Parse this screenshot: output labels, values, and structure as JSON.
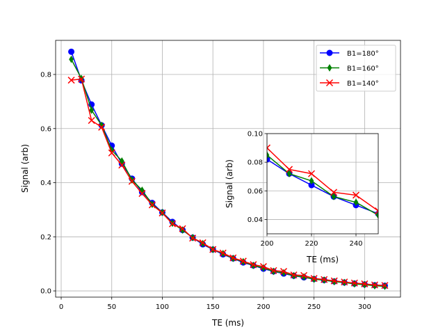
{
  "chart_data": [
    {
      "type": "line",
      "xlabel": "TE (ms)",
      "ylabel": "Signal (arb)",
      "xlim": [
        -5.5,
        335.5
      ],
      "ylim": [
        -0.023,
        0.926
      ],
      "xticks": [
        0,
        50,
        100,
        150,
        200,
        250,
        300
      ],
      "yticks": [
        0.0,
        0.2,
        0.4,
        0.6,
        0.8
      ],
      "grid": true,
      "legend": "top-right",
      "x": [
        10,
        20,
        30,
        40,
        50,
        60,
        70,
        80,
        90,
        100,
        110,
        120,
        130,
        140,
        150,
        160,
        170,
        180,
        190,
        200,
        210,
        220,
        230,
        240,
        250,
        260,
        270,
        280,
        290,
        300,
        310,
        320
      ],
      "series": [
        {
          "name": "B1=180°",
          "color": "#0000ff",
          "marker": "circle",
          "values": [
            0.884,
            0.778,
            0.689,
            0.612,
            0.537,
            0.47,
            0.415,
            0.365,
            0.325,
            0.29,
            0.255,
            0.225,
            0.197,
            0.172,
            0.153,
            0.135,
            0.12,
            0.105,
            0.094,
            0.082,
            0.072,
            0.064,
            0.056,
            0.05,
            0.044,
            0.04,
            0.035,
            0.031,
            0.027,
            0.024,
            0.021,
            0.019
          ]
        },
        {
          "name": "B1=160°",
          "color": "#008000",
          "marker": "diamond",
          "values": [
            0.856,
            0.785,
            0.668,
            0.612,
            0.52,
            0.48,
            0.41,
            0.372,
            0.32,
            0.29,
            0.25,
            0.225,
            0.197,
            0.175,
            0.153,
            0.138,
            0.12,
            0.108,
            0.094,
            0.085,
            0.072,
            0.067,
            0.056,
            0.052,
            0.043,
            0.04,
            0.034,
            0.031,
            0.026,
            0.023,
            0.019,
            0.017
          ]
        },
        {
          "name": "B1=140°",
          "color": "#ff0000",
          "marker": "x",
          "values": [
            0.779,
            0.783,
            0.63,
            0.605,
            0.51,
            0.465,
            0.405,
            0.36,
            0.318,
            0.288,
            0.248,
            0.23,
            0.195,
            0.178,
            0.153,
            0.14,
            0.122,
            0.11,
            0.097,
            0.09,
            0.075,
            0.072,
            0.059,
            0.057,
            0.046,
            0.042,
            0.037,
            0.033,
            0.029,
            0.026,
            0.022,
            0.02
          ]
        }
      ]
    },
    {
      "type": "line",
      "inset": true,
      "xlabel": "TE (ms)",
      "ylabel": "Signal (arb)",
      "xlim": [
        200,
        250
      ],
      "ylim": [
        0.03,
        0.1
      ],
      "xticks": [
        200,
        220,
        240
      ],
      "yticks": [
        0.04,
        0.06,
        0.08,
        0.1
      ],
      "grid": true
    }
  ]
}
